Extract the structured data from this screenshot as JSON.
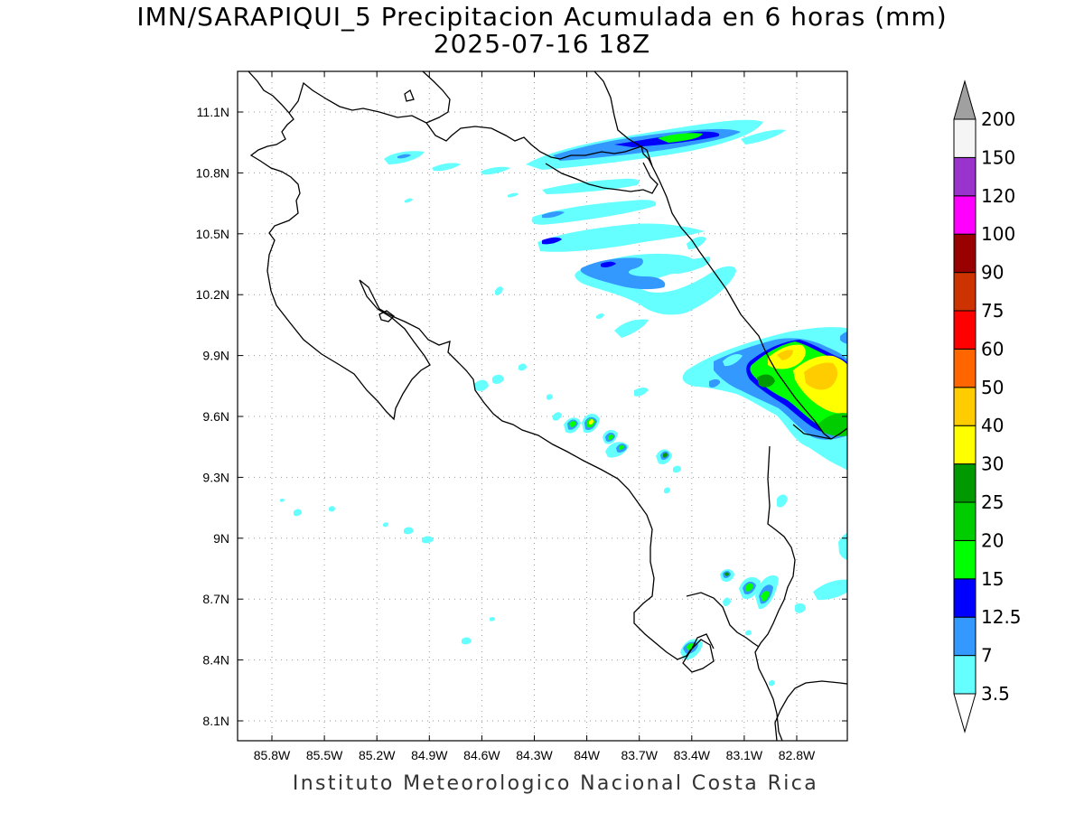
{
  "title": {
    "line1": "IMN/SARAPIQUI_5 Precipitacion Acumulada en 6 horas (mm)",
    "line2": "2025-07-16 18Z"
  },
  "footer": "Instituto Meteorologico Nacional Costa Rica",
  "map": {
    "x_ticks": [
      "85.8W",
      "85.5W",
      "85.2W",
      "84.9W",
      "84.6W",
      "84.3W",
      "84W",
      "83.7W",
      "83.4W",
      "83.1W",
      "82.8W"
    ],
    "y_ticks": [
      "11.1N",
      "10.8N",
      "10.5N",
      "10.2N",
      "9.9N",
      "9.6N",
      "9.3N",
      "9N",
      "8.7N",
      "8.4N",
      "8.1N"
    ],
    "grid": "dotted",
    "border_color": "#000000"
  },
  "colorbar": {
    "levels": [
      "3.5",
      "7",
      "12.5",
      "15",
      "20",
      "25",
      "30",
      "40",
      "50",
      "60",
      "75",
      "90",
      "100",
      "120",
      "150",
      "200"
    ],
    "colors": [
      "#66ffff",
      "#3399ff",
      "#0000ff",
      "#00ff00",
      "#00cc00",
      "#009900",
      "#ffff00",
      "#ffcc00",
      "#ff6600",
      "#ff0000",
      "#cc3300",
      "#990000",
      "#ff00ff",
      "#9933cc",
      "#f5f5f5",
      "#a0a0a0"
    ],
    "low_end_color": "#ffffff"
  }
}
